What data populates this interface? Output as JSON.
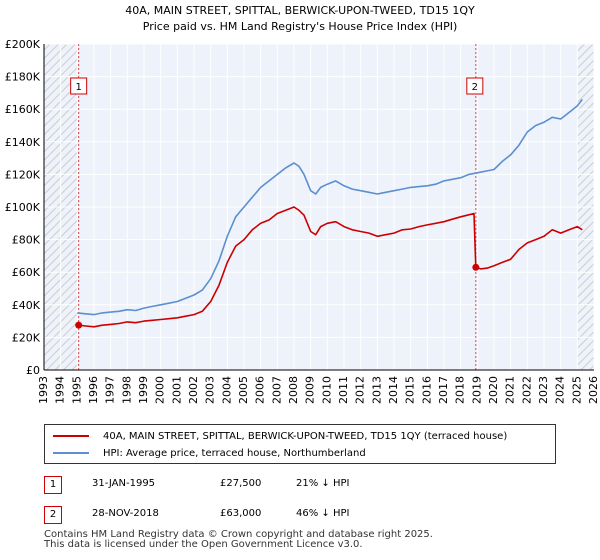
{
  "chart_data": {
    "type": "line",
    "title": "40A, MAIN STREET, SPITTAL, BERWICK-UPON-TWEED, TD15 1QY",
    "subtitle": "Price paid vs. HM Land Registry's House Price Index (HPI)",
    "xlabel": "",
    "ylabel": "",
    "xlim": [
      1993,
      2026
    ],
    "ylim": [
      0,
      200000
    ],
    "x_ticks": [
      1993,
      1994,
      1995,
      1996,
      1997,
      1998,
      1999,
      2000,
      2001,
      2002,
      2003,
      2004,
      2005,
      2006,
      2007,
      2008,
      2009,
      2010,
      2011,
      2012,
      2013,
      2014,
      2015,
      2016,
      2017,
      2018,
      2019,
      2020,
      2021,
      2022,
      2023,
      2024,
      2025,
      2026
    ],
    "y_ticks": [
      0,
      20000,
      40000,
      60000,
      80000,
      100000,
      120000,
      140000,
      160000,
      180000,
      200000
    ],
    "y_tick_labels": [
      "£0",
      "£20K",
      "£40K",
      "£60K",
      "£80K",
      "£100K",
      "£120K",
      "£140K",
      "£160K",
      "£180K",
      "£200K"
    ],
    "hatch_before": 1995.08,
    "hatch_after": 2025.0,
    "series": [
      {
        "name": "40A, MAIN STREET, SPITTAL, BERWICK-UPON-TWEED, TD15 1QY (terraced house)",
        "color": "#cc0000",
        "x": [
          1995.08,
          1995.5,
          1996,
          1996.5,
          1997,
          1997.5,
          1998,
          1998.5,
          1999,
          1999.5,
          2000,
          2000.5,
          2001,
          2001.5,
          2002,
          2002.5,
          2003,
          2003.5,
          2004,
          2004.5,
          2005,
          2005.5,
          2006,
          2006.5,
          2007,
          2007.5,
          2008,
          2008.3,
          2008.6,
          2009,
          2009.3,
          2009.6,
          2010,
          2010.5,
          2011,
          2011.5,
          2012,
          2012.5,
          2013,
          2013.5,
          2014,
          2014.5,
          2015,
          2015.5,
          2016,
          2016.5,
          2017,
          2017.5,
          2018,
          2018.4,
          2018.8,
          2018.91,
          2019.2,
          2019.6,
          2020,
          2020.5,
          2021,
          2021.5,
          2022,
          2022.5,
          2023,
          2023.5,
          2024,
          2024.5,
          2025,
          2025.3
        ],
        "y": [
          27500,
          27000,
          26500,
          27500,
          28000,
          28500,
          29500,
          29000,
          30000,
          30500,
          31000,
          31500,
          32000,
          33000,
          34000,
          36000,
          42000,
          52000,
          66000,
          76000,
          80000,
          86000,
          90000,
          92000,
          96000,
          98000,
          100000,
          98000,
          95000,
          85000,
          83000,
          88000,
          90000,
          91000,
          88000,
          86000,
          85000,
          84000,
          82000,
          83000,
          84000,
          86000,
          86500,
          88000,
          89000,
          90000,
          91000,
          92500,
          94000,
          95000,
          96000,
          63000,
          62000,
          62500,
          64000,
          66000,
          68000,
          74000,
          78000,
          80000,
          82000,
          86000,
          84000,
          86000,
          88000,
          86000
        ]
      },
      {
        "name": "HPI: Average price, terraced house, Northumberland",
        "color": "#5b8fd0",
        "x": [
          1995,
          1995.5,
          1996,
          1996.5,
          1997,
          1997.5,
          1998,
          1998.5,
          1999,
          1999.5,
          2000,
          2000.5,
          2001,
          2001.5,
          2002,
          2002.5,
          2003,
          2003.5,
          2004,
          2004.5,
          2005,
          2005.5,
          2006,
          2006.5,
          2007,
          2007.5,
          2008,
          2008.3,
          2008.6,
          2009,
          2009.3,
          2009.6,
          2010,
          2010.5,
          2011,
          2011.5,
          2012,
          2012.5,
          2013,
          2013.5,
          2014,
          2014.5,
          2015,
          2015.5,
          2016,
          2016.5,
          2017,
          2017.5,
          2018,
          2018.5,
          2019,
          2019.5,
          2020,
          2020.5,
          2021,
          2021.5,
          2022,
          2022.5,
          2023,
          2023.5,
          2024,
          2024.5,
          2025,
          2025.3
        ],
        "y": [
          35000,
          34500,
          34000,
          35000,
          35500,
          36000,
          37000,
          36500,
          38000,
          39000,
          40000,
          41000,
          42000,
          44000,
          46000,
          49000,
          56000,
          67000,
          82000,
          94000,
          100000,
          106000,
          112000,
          116000,
          120000,
          124000,
          127000,
          125000,
          120000,
          110000,
          108000,
          112000,
          114000,
          116000,
          113000,
          111000,
          110000,
          109000,
          108000,
          109000,
          110000,
          111000,
          112000,
          112500,
          113000,
          114000,
          116000,
          117000,
          118000,
          120000,
          121000,
          122000,
          123000,
          128000,
          132000,
          138000,
          146000,
          150000,
          152000,
          155000,
          154000,
          158000,
          162000,
          166000
        ]
      }
    ],
    "markers": [
      {
        "label": "1",
        "x": 1995.08,
        "y": 27500
      },
      {
        "label": "2",
        "x": 2018.91,
        "y": 63000
      }
    ]
  },
  "legend": {
    "property_label": "40A, MAIN STREET, SPITTAL, BERWICK-UPON-TWEED, TD15 1QY (terraced house)",
    "hpi_label": "HPI: Average price, terraced house, Northumberland",
    "property_color": "#cc0000",
    "hpi_color": "#5b8fd0"
  },
  "sales": [
    {
      "num": "1",
      "date": "31-JAN-1995",
      "price": "£27,500",
      "hpi": "21% ↓ HPI"
    },
    {
      "num": "2",
      "date": "28-NOV-2018",
      "price": "£63,000",
      "hpi": "46% ↓ HPI"
    }
  ],
  "footer": {
    "line1": "Contains HM Land Registry data © Crown copyright and database right 2025.",
    "line2": "This data is licensed under the Open Government Licence v3.0."
  }
}
